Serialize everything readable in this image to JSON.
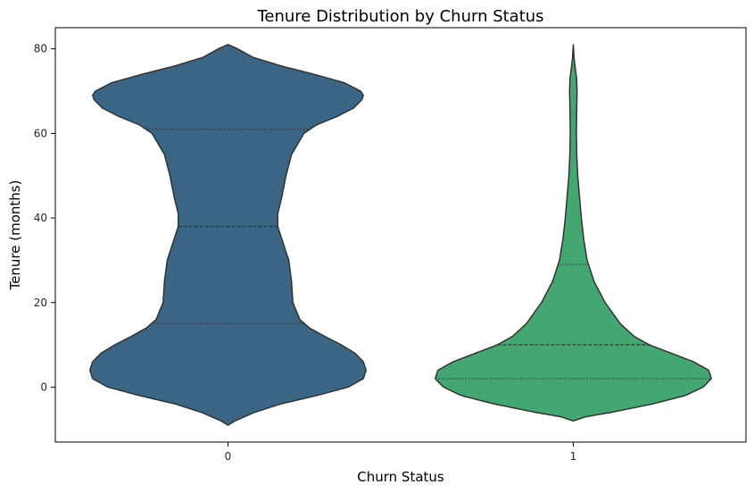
{
  "chart_data": {
    "type": "violin",
    "title": "Tenure Distribution by Churn Status",
    "xlabel": "Churn Status",
    "ylabel": "Tenure (months)",
    "categories": [
      "0",
      "1"
    ],
    "ylim": [
      -13,
      85
    ],
    "yticks": [
      0,
      20,
      40,
      60,
      80
    ],
    "grid": false,
    "violins": [
      {
        "category": "0",
        "color": "#3b6584",
        "range": [
          -9,
          81
        ],
        "quartiles": {
          "q1": 15,
          "median": 38,
          "q3": 61
        },
        "profile": [
          [
            -9,
            0.0
          ],
          [
            -8,
            0.05
          ],
          [
            -6,
            0.19
          ],
          [
            -4,
            0.38
          ],
          [
            -2,
            0.64
          ],
          [
            0,
            0.87
          ],
          [
            2,
            0.98
          ],
          [
            4,
            1.0
          ],
          [
            6,
            0.98
          ],
          [
            8,
            0.92
          ],
          [
            10,
            0.82
          ],
          [
            12,
            0.7
          ],
          [
            14,
            0.59
          ],
          [
            16,
            0.52
          ],
          [
            20,
            0.47
          ],
          [
            25,
            0.46
          ],
          [
            30,
            0.44
          ],
          [
            35,
            0.39
          ],
          [
            38,
            0.36
          ],
          [
            41,
            0.36
          ],
          [
            45,
            0.39
          ],
          [
            50,
            0.42
          ],
          [
            55,
            0.46
          ],
          [
            60,
            0.55
          ],
          [
            62,
            0.64
          ],
          [
            64,
            0.79
          ],
          [
            66,
            0.91
          ],
          [
            68,
            0.97
          ],
          [
            69,
            0.98
          ],
          [
            70,
            0.96
          ],
          [
            72,
            0.84
          ],
          [
            74,
            0.62
          ],
          [
            76,
            0.38
          ],
          [
            78,
            0.18
          ],
          [
            80,
            0.07
          ],
          [
            81,
            0.0
          ]
        ]
      },
      {
        "category": "1",
        "color": "#44a772",
        "range": [
          -8,
          81
        ],
        "quartiles": {
          "q1": 2,
          "median": 10,
          "q3": 29
        },
        "profile": [
          [
            -8,
            0.0
          ],
          [
            -7,
            0.09
          ],
          [
            -6,
            0.27
          ],
          [
            -4,
            0.57
          ],
          [
            -2,
            0.81
          ],
          [
            0,
            0.94
          ],
          [
            2,
            1.0
          ],
          [
            4,
            0.98
          ],
          [
            6,
            0.87
          ],
          [
            8,
            0.71
          ],
          [
            10,
            0.55
          ],
          [
            12,
            0.44
          ],
          [
            15,
            0.34
          ],
          [
            20,
            0.23
          ],
          [
            25,
            0.15
          ],
          [
            30,
            0.1
          ],
          [
            35,
            0.075
          ],
          [
            40,
            0.058
          ],
          [
            45,
            0.045
          ],
          [
            50,
            0.032
          ],
          [
            55,
            0.025
          ],
          [
            60,
            0.022
          ],
          [
            65,
            0.024
          ],
          [
            70,
            0.027
          ],
          [
            73,
            0.024
          ],
          [
            76,
            0.012
          ],
          [
            78,
            0.005
          ],
          [
            80,
            0.002
          ],
          [
            81,
            0.0
          ]
        ]
      }
    ]
  }
}
